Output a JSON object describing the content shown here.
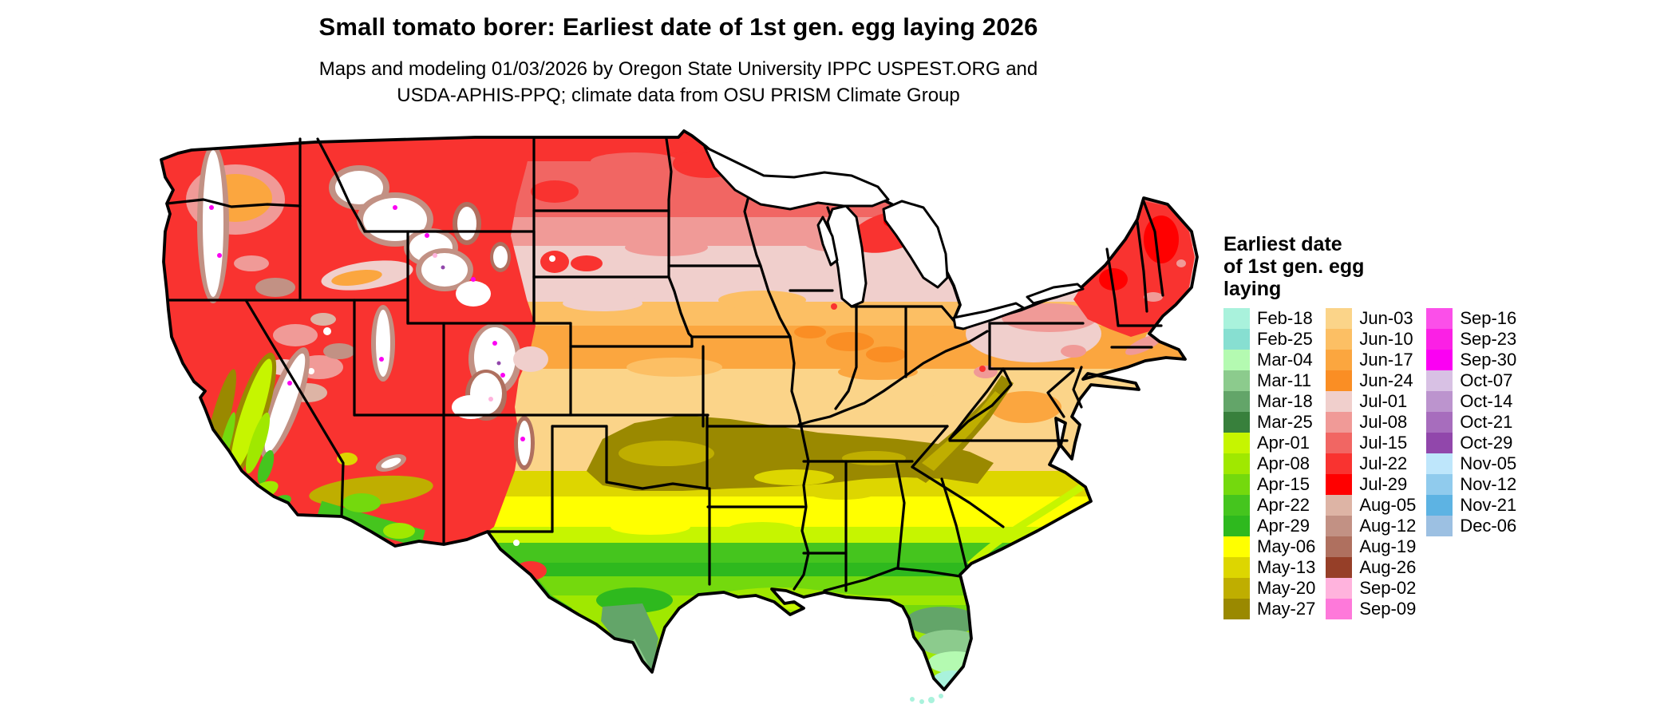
{
  "title": "Small tomato borer: Earliest date of 1st gen. egg laying 2026",
  "subtitle_line1": "Maps and modeling 01/03/2026 by Oregon State University IPPC USPEST.ORG and",
  "subtitle_line2": "USDA-APHIS-PPQ; climate data from OSU PRISM Climate Group",
  "legend": {
    "title": "Earliest date\nof 1st gen. egg\nlaying",
    "columns": [
      {
        "entries": [
          {
            "label": "Feb-18",
            "color": "#a9f2dc"
          },
          {
            "label": "Feb-25",
            "color": "#87dfd1"
          },
          {
            "label": "Mar-04",
            "color": "#b4fab1"
          },
          {
            "label": "Mar-11",
            "color": "#8ccb8d"
          },
          {
            "label": "Mar-18",
            "color": "#63a569"
          },
          {
            "label": "Mar-25",
            "color": "#38803c"
          },
          {
            "label": "Apr-01",
            "color": "#c6f500"
          },
          {
            "label": "Apr-08",
            "color": "#a0e800"
          },
          {
            "label": "Apr-15",
            "color": "#74d90d"
          },
          {
            "label": "Apr-22",
            "color": "#45c51e"
          },
          {
            "label": "Apr-29",
            "color": "#2eb91e"
          },
          {
            "label": "May-06",
            "color": "#ffff00"
          },
          {
            "label": "May-13",
            "color": "#ddd600"
          },
          {
            "label": "May-20",
            "color": "#bfae00"
          },
          {
            "label": "May-27",
            "color": "#9a8900"
          }
        ]
      },
      {
        "entries": [
          {
            "label": "Jun-03",
            "color": "#fbd489"
          },
          {
            "label": "Jun-10",
            "color": "#fcbf64"
          },
          {
            "label": "Jun-17",
            "color": "#fba63f"
          },
          {
            "label": "Jun-24",
            "color": "#fa8e24"
          },
          {
            "label": "Jul-01",
            "color": "#f0cfcc"
          },
          {
            "label": "Jul-08",
            "color": "#f09a97"
          },
          {
            "label": "Jul-15",
            "color": "#f16663"
          },
          {
            "label": "Jul-22",
            "color": "#f93330"
          },
          {
            "label": "Jul-29",
            "color": "#ff0000"
          },
          {
            "label": "Aug-05",
            "color": "#ddb4a5"
          },
          {
            "label": "Aug-12",
            "color": "#c29184"
          },
          {
            "label": "Aug-19",
            "color": "#af705f"
          },
          {
            "label": "Aug-26",
            "color": "#963f28"
          },
          {
            "label": "Sep-02",
            "color": "#ffb3dd"
          },
          {
            "label": "Sep-09",
            "color": "#fe79da"
          }
        ]
      },
      {
        "entries": [
          {
            "label": "Sep-16",
            "color": "#fb4fe9"
          },
          {
            "label": "Sep-23",
            "color": "#fb20e5"
          },
          {
            "label": "Sep-30",
            "color": "#fb00f3"
          },
          {
            "label": "Oct-07",
            "color": "#d8c1e4"
          },
          {
            "label": "Oct-14",
            "color": "#bc94ce"
          },
          {
            "label": "Oct-21",
            "color": "#a76dbd"
          },
          {
            "label": "Oct-29",
            "color": "#9147ab"
          },
          {
            "label": "Nov-05",
            "color": "#bee6fb"
          },
          {
            "label": "Nov-12",
            "color": "#90cbed"
          },
          {
            "label": "Nov-21",
            "color": "#5db3e3"
          },
          {
            "label": "Dec-06",
            "color": "#9cc0e2"
          }
        ]
      }
    ]
  },
  "chart_data": {
    "type": "choropleth-map",
    "region": "Continental United States",
    "variable": "Earliest date of 1st gen. egg laying",
    "scale_labels": [
      "Feb-18",
      "Feb-25",
      "Mar-04",
      "Mar-11",
      "Mar-18",
      "Mar-25",
      "Apr-01",
      "Apr-08",
      "Apr-15",
      "Apr-22",
      "Apr-29",
      "May-06",
      "May-13",
      "May-20",
      "May-27",
      "Jun-03",
      "Jun-10",
      "Jun-17",
      "Jun-24",
      "Jul-01",
      "Jul-08",
      "Jul-15",
      "Jul-22",
      "Jul-29",
      "Aug-05",
      "Aug-12",
      "Aug-19",
      "Aug-26",
      "Sep-02",
      "Sep-09",
      "Sep-16",
      "Sep-23",
      "Sep-30",
      "Oct-07",
      "Oct-14",
      "Oct-21",
      "Oct-29",
      "Nov-05",
      "Nov-12",
      "Nov-21",
      "Dec-06"
    ],
    "scale_colors": [
      "#a9f2dc",
      "#87dfd1",
      "#b4fab1",
      "#8ccb8d",
      "#63a569",
      "#38803c",
      "#c6f500",
      "#a0e800",
      "#74d90d",
      "#45c51e",
      "#2eb91e",
      "#ffff00",
      "#ddd600",
      "#bfae00",
      "#9a8900",
      "#fbd489",
      "#fcbf64",
      "#fba63f",
      "#fa8e24",
      "#f0cfcc",
      "#f09a97",
      "#f16663",
      "#f93330",
      "#ff0000",
      "#ddb4a5",
      "#c29184",
      "#af705f",
      "#963f28",
      "#ffb3dd",
      "#fe79da",
      "#fb4fe9",
      "#fb20e5",
      "#fb00f3",
      "#d8c1e4",
      "#bc94ce",
      "#a76dbd",
      "#9147ab",
      "#bee6fb",
      "#90cbed",
      "#5db3e3",
      "#9cc0e2"
    ],
    "legend_position": "right",
    "background_color": "#ffffff"
  }
}
